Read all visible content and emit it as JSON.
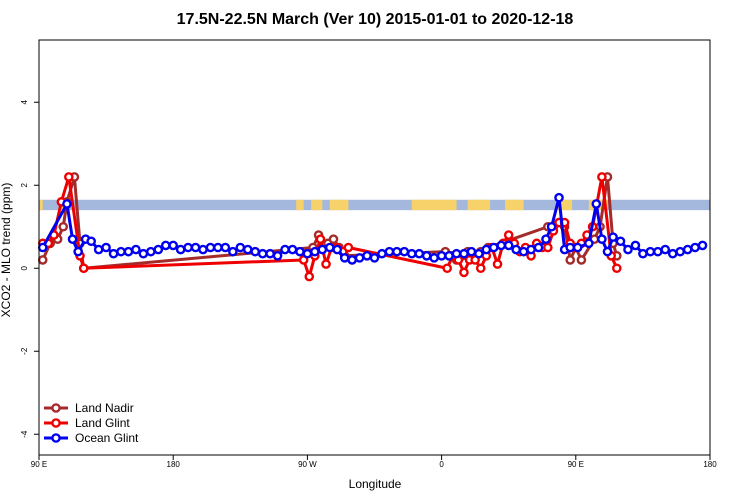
{
  "chart_data": {
    "type": "line",
    "title": "17.5N-22.5N March (Ver 10)   2015-01-01 to 2020-12-18",
    "xlabel": "Longitude",
    "ylabel": "XCO2 - MLO trend (ppm)",
    "xlim": [
      -90,
      270
    ],
    "ylim": [
      -4.5,
      5.5
    ],
    "x_ticks": [
      {
        "value": -90,
        "label": "90 E"
      },
      {
        "value": -18,
        "label": "180"
      },
      {
        "value": 54,
        "label": "90 W"
      },
      {
        "value": 126,
        "label": "0"
      },
      {
        "value": 198,
        "label": "90 E"
      },
      {
        "value": 270,
        "label": "180"
      }
    ],
    "y_ticks": [
      -4,
      -2,
      0,
      2,
      4
    ],
    "land_band": {
      "y_range": [
        1.4,
        1.65
      ],
      "ocean_color": "#a3b8dc",
      "land_color": "#f7d26a",
      "land_segments": [
        [
          -90,
          -88
        ],
        [
          -78,
          -75
        ],
        [
          48,
          52
        ],
        [
          56,
          62
        ],
        [
          66,
          76
        ],
        [
          110,
          134
        ],
        [
          140,
          152
        ],
        [
          160,
          170
        ],
        [
          188,
          196
        ],
        [
          205,
          215
        ]
      ]
    },
    "series": [
      {
        "name": "Land Nadir",
        "color": "#a52a2a",
        "points": [
          [
            -88,
            0.2
          ],
          [
            -84,
            0.6
          ],
          [
            -80,
            0.7
          ],
          [
            -77,
            1.0
          ],
          [
            -75,
            1.6
          ],
          [
            -71,
            2.2
          ],
          [
            -68,
            0.6
          ],
          [
            -66,
            0.0
          ],
          [
            57,
            0.5
          ],
          [
            60,
            0.8
          ],
          [
            62,
            0.6
          ],
          [
            65,
            0.6
          ],
          [
            68,
            0.7
          ],
          [
            71,
            0.5
          ],
          [
            74,
            0.3
          ],
          [
            128,
            0.4
          ],
          [
            131,
            0.3
          ],
          [
            134,
            0.2
          ],
          [
            137,
            0.3
          ],
          [
            140,
            0.4
          ],
          [
            143,
            0.3
          ],
          [
            147,
            0.4
          ],
          [
            151,
            0.5
          ],
          [
            183,
            1.0
          ],
          [
            186,
            1.0
          ],
          [
            189,
            1.1
          ],
          [
            192,
            1.0
          ],
          [
            195,
            0.2
          ],
          [
            198,
            0.5
          ],
          [
            201,
            0.2
          ],
          [
            208,
            0.7
          ],
          [
            211,
            1.0
          ],
          [
            215,
            2.2
          ],
          [
            218,
            0.6
          ],
          [
            220,
            0.3
          ]
        ]
      },
      {
        "name": "Land Glint",
        "color": "#ee0000",
        "points": [
          [
            -88,
            0.6
          ],
          [
            -85,
            0.6
          ],
          [
            -82,
            0.8
          ],
          [
            -78,
            1.6
          ],
          [
            -74,
            2.2
          ],
          [
            -68,
            0.3
          ],
          [
            -66,
            0.0
          ],
          [
            52,
            0.2
          ],
          [
            55,
            -0.2
          ],
          [
            58,
            0.3
          ],
          [
            61,
            0.7
          ],
          [
            64,
            0.1
          ],
          [
            67,
            0.5
          ],
          [
            70,
            0.5
          ],
          [
            73,
            0.4
          ],
          [
            76,
            0.5
          ],
          [
            129,
            0.0
          ],
          [
            132,
            0.3
          ],
          [
            135,
            0.2
          ],
          [
            138,
            -0.1
          ],
          [
            141,
            0.2
          ],
          [
            144,
            0.2
          ],
          [
            147,
            0.0
          ],
          [
            150,
            0.3
          ],
          [
            153,
            0.5
          ],
          [
            156,
            0.1
          ],
          [
            159,
            0.6
          ],
          [
            162,
            0.8
          ],
          [
            165,
            0.6
          ],
          [
            168,
            0.4
          ],
          [
            171,
            0.5
          ],
          [
            174,
            0.3
          ],
          [
            177,
            0.6
          ],
          [
            180,
            0.5
          ],
          [
            183,
            0.5
          ],
          [
            186,
            0.9
          ],
          [
            189,
            1.1
          ],
          [
            192,
            1.1
          ],
          [
            195,
            0.6
          ],
          [
            198,
            0.5
          ],
          [
            201,
            0.6
          ],
          [
            204,
            0.8
          ],
          [
            207,
            1.0
          ],
          [
            212,
            2.2
          ],
          [
            217,
            0.3
          ],
          [
            220,
            0.0
          ]
        ]
      },
      {
        "name": "Ocean Glint",
        "color": "#0000ee",
        "points": [
          [
            -88,
            0.5
          ],
          [
            -75,
            1.55
          ],
          [
            -72,
            0.7
          ],
          [
            -69,
            0.4
          ],
          [
            -65,
            0.7
          ],
          [
            -62,
            0.65
          ],
          [
            -58,
            0.45
          ],
          [
            -54,
            0.5
          ],
          [
            -50,
            0.35
          ],
          [
            -46,
            0.4
          ],
          [
            -42,
            0.4
          ],
          [
            -38,
            0.45
          ],
          [
            -34,
            0.35
          ],
          [
            -30,
            0.4
          ],
          [
            -26,
            0.45
          ],
          [
            -22,
            0.55
          ],
          [
            -18,
            0.55
          ],
          [
            -14,
            0.45
          ],
          [
            -10,
            0.5
          ],
          [
            -6,
            0.5
          ],
          [
            -2,
            0.45
          ],
          [
            2,
            0.5
          ],
          [
            6,
            0.5
          ],
          [
            10,
            0.5
          ],
          [
            14,
            0.4
          ],
          [
            18,
            0.5
          ],
          [
            22,
            0.45
          ],
          [
            26,
            0.4
          ],
          [
            30,
            0.35
          ],
          [
            34,
            0.35
          ],
          [
            38,
            0.3
          ],
          [
            42,
            0.45
          ],
          [
            46,
            0.45
          ],
          [
            50,
            0.4
          ],
          [
            54,
            0.35
          ],
          [
            58,
            0.4
          ],
          [
            62,
            0.45
          ],
          [
            66,
            0.5
          ],
          [
            70,
            0.45
          ],
          [
            74,
            0.25
          ],
          [
            78,
            0.2
          ],
          [
            82,
            0.25
          ],
          [
            86,
            0.3
          ],
          [
            90,
            0.25
          ],
          [
            94,
            0.35
          ],
          [
            98,
            0.4
          ],
          [
            102,
            0.4
          ],
          [
            106,
            0.4
          ],
          [
            110,
            0.35
          ],
          [
            114,
            0.35
          ],
          [
            118,
            0.3
          ],
          [
            122,
            0.25
          ],
          [
            126,
            0.3
          ],
          [
            130,
            0.3
          ],
          [
            134,
            0.35
          ],
          [
            138,
            0.35
          ],
          [
            142,
            0.4
          ],
          [
            146,
            0.35
          ],
          [
            150,
            0.45
          ],
          [
            154,
            0.5
          ],
          [
            158,
            0.55
          ],
          [
            162,
            0.55
          ],
          [
            166,
            0.45
          ],
          [
            170,
            0.4
          ],
          [
            174,
            0.45
          ],
          [
            178,
            0.5
          ],
          [
            182,
            0.7
          ],
          [
            185,
            1.0
          ],
          [
            189,
            1.7
          ],
          [
            192,
            0.45
          ],
          [
            195,
            0.5
          ],
          [
            199,
            0.5
          ],
          [
            205,
            0.6
          ],
          [
            209,
            1.55
          ],
          [
            212,
            0.7
          ],
          [
            215,
            0.4
          ],
          [
            218,
            0.75
          ],
          [
            222,
            0.65
          ],
          [
            226,
            0.45
          ],
          [
            230,
            0.55
          ],
          [
            234,
            0.35
          ],
          [
            238,
            0.4
          ],
          [
            242,
            0.4
          ],
          [
            246,
            0.45
          ],
          [
            250,
            0.35
          ],
          [
            254,
            0.4
          ],
          [
            258,
            0.45
          ],
          [
            262,
            0.5
          ],
          [
            266,
            0.55
          ]
        ]
      }
    ],
    "legend": {
      "placement": "bottom-left",
      "entries": [
        "Land Nadir",
        "Land Glint",
        "Ocean Glint"
      ]
    },
    "grid": false
  }
}
